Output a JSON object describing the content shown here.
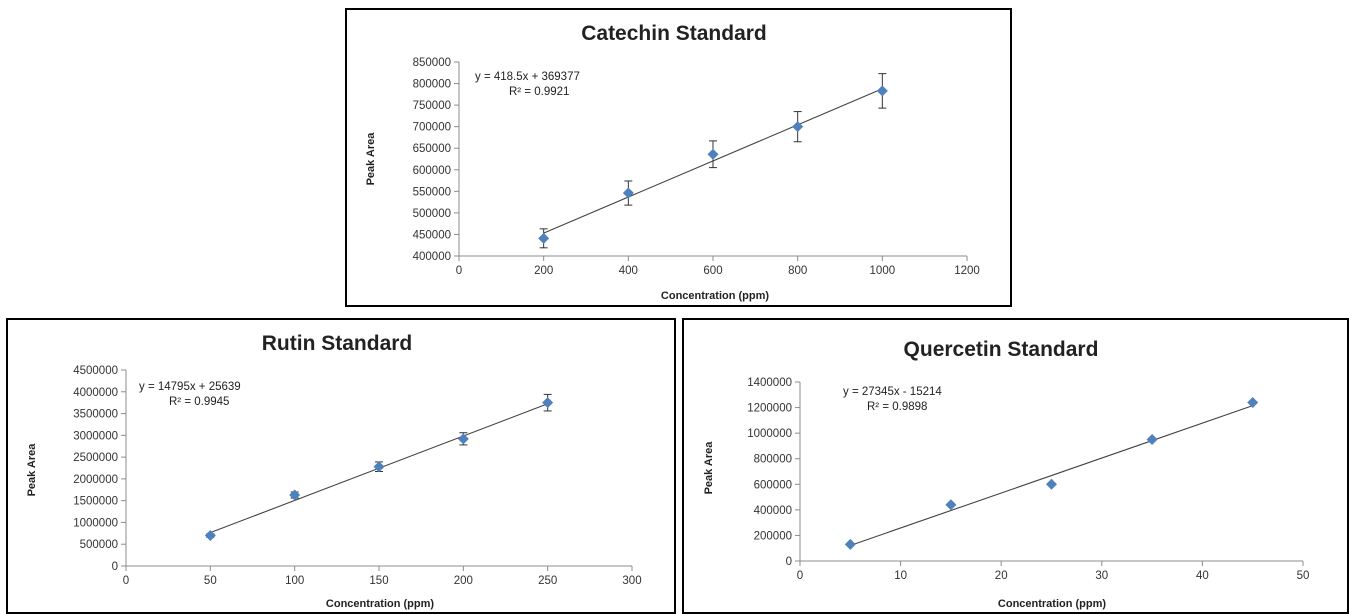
{
  "chart_data": [
    {
      "type": "scatter",
      "title": "Catechin Standard",
      "xlabel": "Concentration (ppm)",
      "ylabel": "Peak Area",
      "xlim": [
        0,
        1200
      ],
      "ylim": [
        400000,
        850000
      ],
      "x_ticks": [
        0,
        200,
        400,
        600,
        800,
        1000,
        1200
      ],
      "y_ticks": [
        400000,
        450000,
        500000,
        550000,
        600000,
        650000,
        700000,
        750000,
        800000,
        850000
      ],
      "x_tick_labels": [
        "0",
        "200",
        "400",
        "600",
        "800",
        "1000",
        "1200"
      ],
      "y_tick_labels": [
        "400000",
        "450000",
        "500000",
        "550000",
        "600000",
        "650000",
        "700000",
        "750000",
        "800000",
        "850000"
      ],
      "grid": false,
      "series": [
        {
          "x": [
            200,
            400,
            600,
            800,
            1000
          ],
          "y": [
            441000,
            546000,
            636000,
            700000,
            783000
          ],
          "error": [
            22000,
            28000,
            31000,
            35000,
            40000
          ],
          "color": "#4f81bd",
          "marker": "diamond"
        }
      ],
      "trendline": {
        "slope": 418.5,
        "intercept": 369377,
        "x_range": [
          200,
          1000
        ],
        "equation": "y = 418.5x + 369377",
        "r2": "R² = 0.9921"
      }
    },
    {
      "type": "scatter",
      "title": "Rutin Standard",
      "xlabel": "Concentration (ppm)",
      "ylabel": "Peak Area",
      "xlim": [
        0,
        300
      ],
      "ylim": [
        0,
        4500000
      ],
      "x_ticks": [
        0,
        50,
        100,
        150,
        200,
        250,
        300
      ],
      "y_ticks": [
        0,
        500000,
        1000000,
        1500000,
        2000000,
        2500000,
        3000000,
        3500000,
        4000000,
        4500000
      ],
      "x_tick_labels": [
        "0",
        "50",
        "100",
        "150",
        "200",
        "250",
        "300"
      ],
      "y_tick_labels": [
        "0",
        "500000",
        "1000000",
        "1500000",
        "2000000",
        "2500000",
        "3000000",
        "3500000",
        "4000000",
        "4500000"
      ],
      "grid": false,
      "series": [
        {
          "x": [
            50,
            100,
            150,
            200,
            250
          ],
          "y": [
            700000,
            1630000,
            2280000,
            2920000,
            3750000
          ],
          "error": [
            40000,
            70000,
            110000,
            140000,
            190000
          ],
          "color": "#4f81bd",
          "marker": "diamond"
        }
      ],
      "trendline": {
        "slope": 14795,
        "intercept": 25639,
        "x_range": [
          50,
          250
        ],
        "equation": "y = 14795x + 25639",
        "r2": "R² = 0.9945"
      }
    },
    {
      "type": "scatter",
      "title": "Quercetin Standard",
      "xlabel": "Concentration (ppm)",
      "ylabel": "Peak Area",
      "xlim": [
        0,
        50
      ],
      "ylim": [
        0,
        1400000
      ],
      "x_ticks": [
        0,
        10,
        20,
        30,
        40,
        50
      ],
      "y_ticks": [
        0,
        200000,
        400000,
        600000,
        800000,
        1000000,
        1200000,
        1400000
      ],
      "x_tick_labels": [
        "0",
        "10",
        "20",
        "30",
        "40",
        "50"
      ],
      "y_tick_labels": [
        "0",
        "200000",
        "400000",
        "600000",
        "800000",
        "1000000",
        "1200000",
        "1400000"
      ],
      "grid": false,
      "series": [
        {
          "x": [
            5,
            15,
            25,
            35,
            45
          ],
          "y": [
            130000,
            440000,
            600000,
            950000,
            1240000
          ],
          "color": "#4f81bd",
          "marker": "diamond"
        }
      ],
      "trendline": {
        "slope": 27345,
        "intercept": -15214,
        "x_range": [
          5,
          45
        ],
        "equation": "y = 27345x - 15214",
        "r2": "R² = 0.9898"
      }
    }
  ]
}
